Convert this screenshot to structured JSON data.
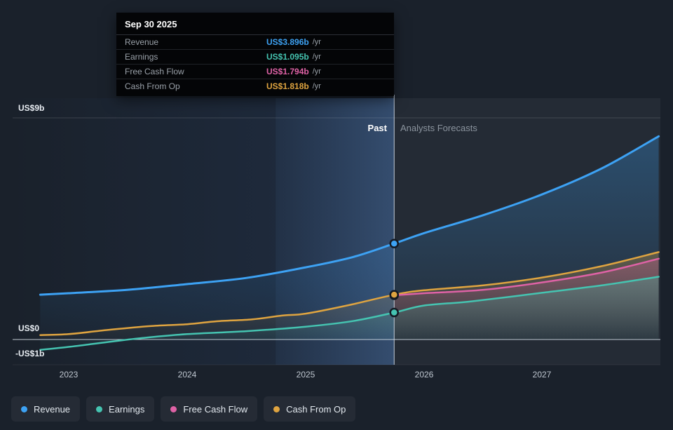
{
  "page": {
    "bg": "#1a212b"
  },
  "tooltip": {
    "date": "Sep 30 2025",
    "rows": [
      {
        "label": "Revenue",
        "value": "US$3.896b",
        "suffix": "/yr",
        "color": "#3da2f4"
      },
      {
        "label": "Earnings",
        "value": "US$1.095b",
        "suffix": "/yr",
        "color": "#45c4b1"
      },
      {
        "label": "Free Cash Flow",
        "value": "US$1.794b",
        "suffix": "/yr",
        "color": "#df62a6"
      },
      {
        "label": "Cash From Op",
        "value": "US$1.818b",
        "suffix": "/yr",
        "color": "#dfa440"
      }
    ]
  },
  "chart_data": {
    "type": "line",
    "unit": "US$ billions per year",
    "x_ticks": [
      {
        "label": "2023",
        "x": 2023
      },
      {
        "label": "2024",
        "x": 2024
      },
      {
        "label": "2025",
        "x": 2025
      },
      {
        "label": "2026",
        "x": 2026
      },
      {
        "label": "2027",
        "x": 2027
      }
    ],
    "y_ticks": [
      {
        "label": "US$9b",
        "value": 9
      },
      {
        "label": "US$0",
        "value": 0
      },
      {
        "label": "-US$1b",
        "value": -1
      }
    ],
    "divider": {
      "x": 2025.747,
      "date": "Sep 30 2025",
      "past_label": "Past",
      "forecast_label": "Analysts Forecasts"
    },
    "highlight_band": {
      "from": 2024.747,
      "to": 2025.747
    },
    "series": [
      {
        "name": "Revenue",
        "color": "#3da2f4",
        "marker_value": 3.896,
        "points": [
          [
            2022.76,
            1.82
          ],
          [
            2023,
            1.88
          ],
          [
            2023.5,
            2.02
          ],
          [
            2024,
            2.25
          ],
          [
            2024.5,
            2.5
          ],
          [
            2025,
            2.93
          ],
          [
            2025.4,
            3.35
          ],
          [
            2025.747,
            3.896
          ],
          [
            2026,
            4.32
          ],
          [
            2026.5,
            5.05
          ],
          [
            2027,
            5.9
          ],
          [
            2027.5,
            6.95
          ],
          [
            2027.98,
            8.25
          ]
        ]
      },
      {
        "name": "Cash From Op",
        "color": "#dfa440",
        "marker_value": 1.818,
        "points": [
          [
            2022.76,
            0.18
          ],
          [
            2023,
            0.22
          ],
          [
            2023.35,
            0.4
          ],
          [
            2023.7,
            0.55
          ],
          [
            2024,
            0.62
          ],
          [
            2024.25,
            0.74
          ],
          [
            2024.55,
            0.82
          ],
          [
            2024.8,
            0.97
          ],
          [
            2025,
            1.05
          ],
          [
            2025.35,
            1.38
          ],
          [
            2025.747,
            1.818
          ],
          [
            2026,
            2.0
          ],
          [
            2026.5,
            2.2
          ],
          [
            2027,
            2.52
          ],
          [
            2027.5,
            2.98
          ],
          [
            2027.98,
            3.55
          ]
        ]
      },
      {
        "name": "Free Cash Flow",
        "color": "#df62a6",
        "marker_value": 1.794,
        "points": [
          [
            2025.747,
            1.794
          ],
          [
            2026,
            1.88
          ],
          [
            2026.5,
            2.02
          ],
          [
            2027,
            2.32
          ],
          [
            2027.5,
            2.72
          ],
          [
            2027.98,
            3.28
          ]
        ]
      },
      {
        "name": "Earnings",
        "color": "#45c4b1",
        "marker_value": 1.095,
        "points": [
          [
            2022.76,
            -0.42
          ],
          [
            2023,
            -0.3
          ],
          [
            2023.3,
            -0.12
          ],
          [
            2023.6,
            0.05
          ],
          [
            2024,
            0.22
          ],
          [
            2024.5,
            0.34
          ],
          [
            2025,
            0.52
          ],
          [
            2025.4,
            0.75
          ],
          [
            2025.747,
            1.095
          ],
          [
            2026,
            1.38
          ],
          [
            2026.4,
            1.55
          ],
          [
            2027,
            1.9
          ],
          [
            2027.5,
            2.2
          ],
          [
            2027.98,
            2.55
          ]
        ]
      }
    ]
  },
  "legend": [
    {
      "label": "Revenue",
      "color": "#3da2f4"
    },
    {
      "label": "Earnings",
      "color": "#45c4b1"
    },
    {
      "label": "Free Cash Flow",
      "color": "#df62a6"
    },
    {
      "label": "Cash From Op",
      "color": "#dfa440"
    }
  ]
}
